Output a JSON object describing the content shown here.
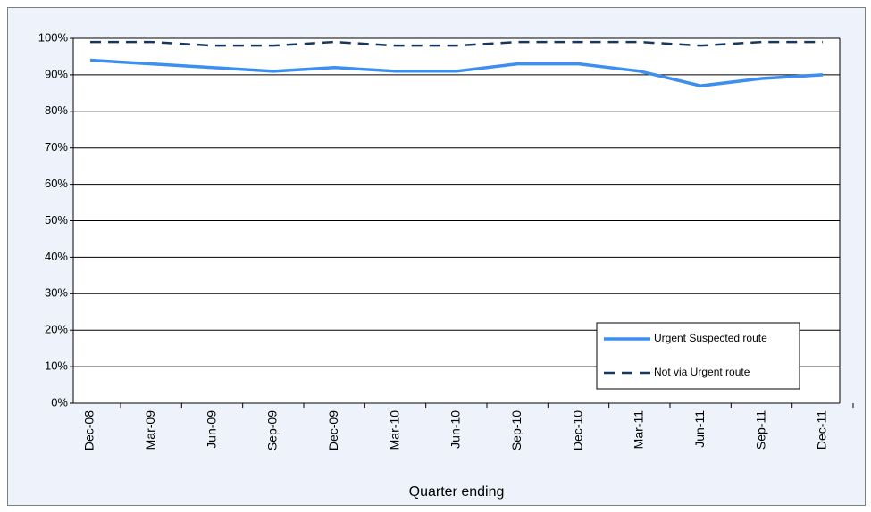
{
  "chart_data": {
    "type": "line",
    "x_label": "Quarter ending",
    "categories": [
      "Dec-08",
      "Mar-09",
      "Jun-09",
      "Sep-09",
      "Dec-09",
      "Mar-10",
      "Jun-10",
      "Sep-10",
      "Dec-10",
      "Mar-11",
      "Jun-11",
      "Sep-11",
      "Dec-11"
    ],
    "series": [
      {
        "name": "Urgent Suspected route",
        "color": "#3d8eef",
        "dashed": false,
        "values": [
          94,
          93,
          92,
          91,
          92,
          91,
          91,
          93,
          93,
          91,
          87,
          89,
          90
        ]
      },
      {
        "name": "Not via Urgent route",
        "color": "#17375e",
        "dashed": true,
        "values": [
          99,
          99,
          98,
          98,
          99,
          98,
          98,
          99,
          99,
          99,
          98,
          99,
          99
        ]
      }
    ],
    "ylim": [
      0,
      100
    ],
    "yticks": [
      {
        "value": 0,
        "label": "0%"
      },
      {
        "value": 10,
        "label": "10%"
      },
      {
        "value": 20,
        "label": "20%"
      },
      {
        "value": 30,
        "label": "30%"
      },
      {
        "value": 40,
        "label": "40%"
      },
      {
        "value": 50,
        "label": "50%"
      },
      {
        "value": 60,
        "label": "60%"
      },
      {
        "value": 70,
        "label": "70%"
      },
      {
        "value": 80,
        "label": "80%"
      },
      {
        "value": 90,
        "label": "90%"
      },
      {
        "value": 100,
        "label": "100%"
      }
    ],
    "grid": true
  }
}
